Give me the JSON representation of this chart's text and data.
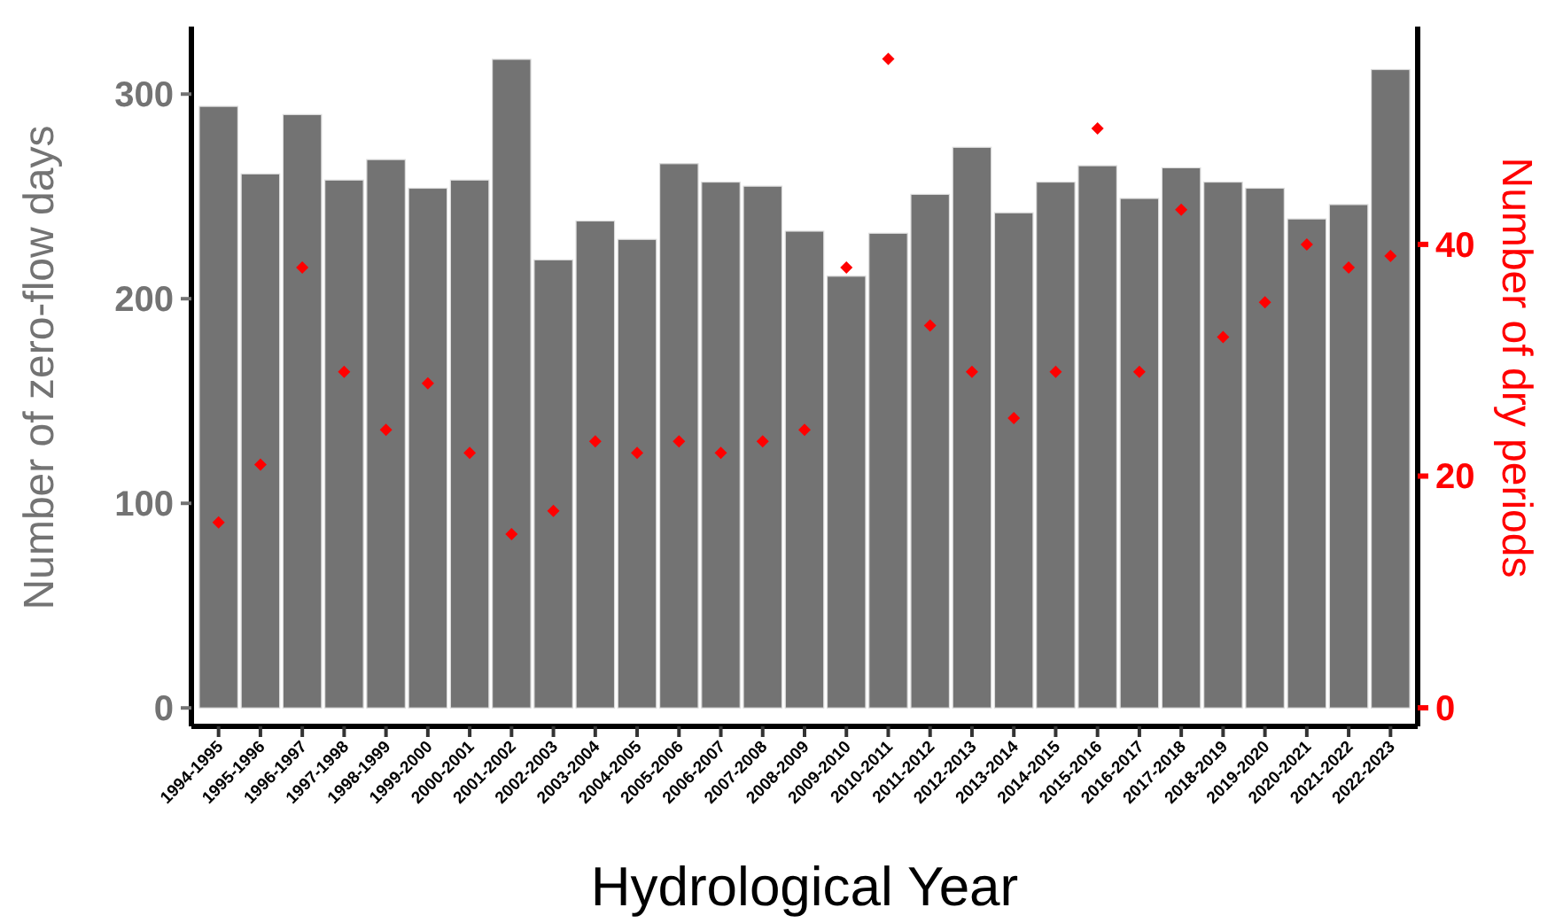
{
  "chart_data": {
    "type": "bar",
    "xlabel": "Hydrological Year",
    "ylabel": "Number of zero-flow days",
    "y2label": "Number of dry periods",
    "categories": [
      "1994-1995",
      "1995-1996",
      "1996-1997",
      "1997-1998",
      "1998-1999",
      "1999-2000",
      "2000-2001",
      "2001-2002",
      "2002-2003",
      "2003-2004",
      "2004-2005",
      "2005-2006",
      "2006-2007",
      "2007-2008",
      "2008-2009",
      "2009-2010",
      "2010-2011",
      "2011-2012",
      "2012-2013",
      "2013-2014",
      "2014-2015",
      "2015-2016",
      "2016-2017",
      "2017-2018",
      "2018-2019",
      "2019-2020",
      "2020-2021",
      "2021-2022",
      "2022-2023"
    ],
    "series": [
      {
        "type": "bar",
        "color": "#737373",
        "values": [
          294,
          261,
          290,
          258,
          268,
          254,
          258,
          317,
          219,
          238,
          229,
          266,
          257,
          255,
          233,
          211,
          232,
          251,
          274,
          242,
          257,
          265,
          249,
          264,
          257,
          254,
          239,
          246,
          312
        ]
      },
      {
        "type": "scatter",
        "axis": "y2",
        "color": "#ff0000",
        "marker": "diamond",
        "values": [
          16,
          21,
          38,
          29,
          24,
          28,
          22,
          15,
          17,
          23,
          22,
          23,
          22,
          23,
          24,
          38,
          56,
          33,
          29,
          25,
          29,
          50,
          29,
          43,
          32,
          35,
          40,
          38,
          39
        ]
      }
    ],
    "ylim": [
      -9,
      333
    ],
    "yticks": [
      0,
      100,
      200,
      300
    ],
    "y2lim": [
      -1.6,
      58.8
    ],
    "y2ticks": [
      0,
      20,
      40
    ],
    "grid": false
  }
}
